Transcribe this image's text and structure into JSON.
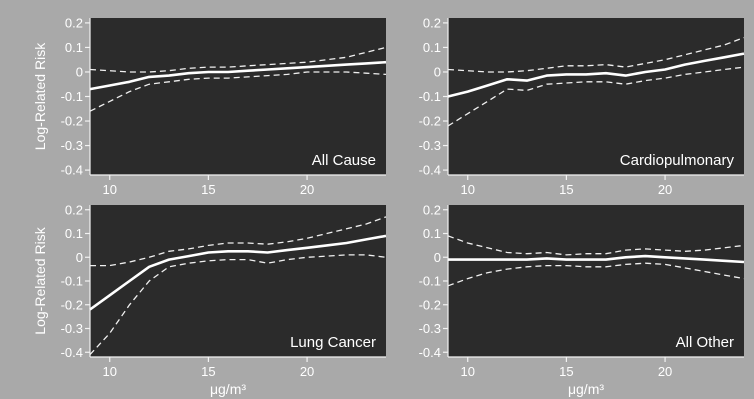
{
  "chart_data": [
    {
      "type": "line",
      "title": "All Cause",
      "ylabel": "Log-Related Risk",
      "xlabel": "",
      "xlim": [
        9,
        24
      ],
      "ylim": [
        -0.42,
        0.22
      ],
      "xticks": [
        10,
        15,
        20
      ],
      "yticks": [
        0.2,
        0.1,
        0,
        -0.1,
        -0.2,
        -0.3,
        -0.4
      ],
      "ytick_labels": [
        "0.2",
        "0.1",
        "0",
        "-0.1",
        "-0.2",
        "-0.3",
        "-0.4"
      ],
      "grid": false,
      "series": [
        {
          "style": "solid",
          "x": [
            9,
            10,
            11,
            12,
            13,
            14,
            15,
            16,
            17,
            18,
            19,
            20,
            21,
            22,
            23,
            24
          ],
          "y": [
            -0.07,
            -0.055,
            -0.04,
            -0.02,
            -0.015,
            -0.005,
            0.0,
            0.0,
            0.005,
            0.01,
            0.015,
            0.02,
            0.025,
            0.03,
            0.035,
            0.04
          ]
        },
        {
          "style": "dashed",
          "x": [
            9,
            10,
            11,
            12,
            13,
            14,
            15,
            16,
            17,
            18,
            19,
            20,
            21,
            22,
            23,
            24
          ],
          "y": [
            0.01,
            0.005,
            0.0,
            0.0,
            0.005,
            0.015,
            0.02,
            0.02,
            0.025,
            0.03,
            0.035,
            0.04,
            0.05,
            0.06,
            0.08,
            0.1
          ]
        },
        {
          "style": "dashed",
          "x": [
            9,
            10,
            11,
            12,
            13,
            14,
            15,
            16,
            17,
            18,
            19,
            20,
            21,
            22,
            23,
            24
          ],
          "y": [
            -0.16,
            -0.12,
            -0.08,
            -0.05,
            -0.04,
            -0.03,
            -0.025,
            -0.025,
            -0.02,
            -0.015,
            -0.01,
            0.0,
            0.0,
            0.0,
            -0.005,
            -0.01
          ]
        }
      ]
    },
    {
      "type": "line",
      "title": "Cardiopulmonary",
      "ylabel": "",
      "xlabel": "",
      "xlim": [
        9,
        24
      ],
      "ylim": [
        -0.42,
        0.22
      ],
      "xticks": [
        10,
        15,
        20
      ],
      "yticks": [
        0.2,
        0.1,
        0,
        -0.1,
        -0.2,
        -0.3,
        -0.4
      ],
      "ytick_labels": [
        "0.2",
        "0.1",
        "0",
        "-0.1",
        "-0.2",
        "-0.3",
        "-0.4"
      ],
      "grid": false,
      "series": [
        {
          "style": "solid",
          "x": [
            9,
            10,
            11,
            12,
            13,
            14,
            15,
            16,
            17,
            18,
            19,
            20,
            21,
            22,
            23,
            24
          ],
          "y": [
            -0.1,
            -0.08,
            -0.055,
            -0.03,
            -0.035,
            -0.015,
            -0.01,
            -0.01,
            -0.005,
            -0.015,
            0.0,
            0.01,
            0.03,
            0.045,
            0.06,
            0.075
          ]
        },
        {
          "style": "dashed",
          "x": [
            9,
            10,
            11,
            12,
            13,
            14,
            15,
            16,
            17,
            18,
            19,
            20,
            21,
            22,
            23,
            24
          ],
          "y": [
            0.01,
            0.005,
            0.0,
            0.0,
            0.005,
            0.015,
            0.025,
            0.025,
            0.03,
            0.02,
            0.035,
            0.05,
            0.07,
            0.09,
            0.11,
            0.14
          ]
        },
        {
          "style": "dashed",
          "x": [
            9,
            10,
            11,
            12,
            13,
            14,
            15,
            16,
            17,
            18,
            19,
            20,
            21,
            22,
            23,
            24
          ],
          "y": [
            -0.22,
            -0.17,
            -0.12,
            -0.07,
            -0.075,
            -0.05,
            -0.045,
            -0.04,
            -0.04,
            -0.05,
            -0.035,
            -0.025,
            -0.01,
            0.0,
            0.01,
            0.02
          ]
        }
      ]
    },
    {
      "type": "line",
      "title": "Lung Cancer",
      "ylabel": "Log-Related Risk",
      "xlabel": "μg/m³",
      "xlim": [
        9,
        24
      ],
      "ylim": [
        -0.42,
        0.22
      ],
      "xticks": [
        10,
        15,
        20
      ],
      "yticks": [
        0.2,
        0.1,
        0,
        -0.1,
        -0.2,
        -0.3,
        -0.4
      ],
      "ytick_labels": [
        "0.2",
        "0.1",
        "0",
        "-0.1",
        "-0.2",
        "-0.3",
        "-0.4"
      ],
      "grid": false,
      "series": [
        {
          "style": "solid",
          "x": [
            9,
            10,
            11,
            12,
            13,
            14,
            15,
            16,
            17,
            18,
            19,
            20,
            21,
            22,
            23,
            24
          ],
          "y": [
            -0.22,
            -0.16,
            -0.1,
            -0.04,
            -0.01,
            0.005,
            0.02,
            0.025,
            0.025,
            0.02,
            0.03,
            0.04,
            0.05,
            0.06,
            0.075,
            0.09
          ]
        },
        {
          "style": "dashed",
          "x": [
            9,
            10,
            11,
            12,
            13,
            14,
            15,
            16,
            17,
            18,
            19,
            20,
            21,
            22,
            23,
            24
          ],
          "y": [
            -0.035,
            -0.035,
            -0.02,
            0.0,
            0.025,
            0.035,
            0.05,
            0.06,
            0.06,
            0.055,
            0.065,
            0.08,
            0.1,
            0.12,
            0.14,
            0.17
          ]
        },
        {
          "style": "dashed",
          "x": [
            9,
            10,
            11,
            12,
            13,
            14,
            15,
            16,
            17,
            18,
            19,
            20,
            21,
            22,
            23,
            24
          ],
          "y": [
            -0.41,
            -0.32,
            -0.2,
            -0.1,
            -0.04,
            -0.025,
            -0.015,
            -0.01,
            -0.01,
            -0.025,
            -0.01,
            0.0,
            0.005,
            0.01,
            0.01,
            0.0
          ]
        }
      ]
    },
    {
      "type": "line",
      "title": "All Other",
      "ylabel": "",
      "xlabel": "μg/m³",
      "xlim": [
        9,
        24
      ],
      "ylim": [
        -0.42,
        0.22
      ],
      "xticks": [
        10,
        15,
        20
      ],
      "yticks": [
        0.2,
        0.1,
        0,
        -0.1,
        -0.2,
        -0.3,
        -0.4
      ],
      "ytick_labels": [
        "0.2",
        "0.1",
        "0",
        "-0.1",
        "-0.2",
        "-0.3",
        "-0.4"
      ],
      "grid": false,
      "series": [
        {
          "style": "solid",
          "x": [
            9,
            10,
            11,
            12,
            13,
            14,
            15,
            16,
            17,
            18,
            19,
            20,
            21,
            22,
            23,
            24
          ],
          "y": [
            -0.01,
            -0.01,
            -0.01,
            -0.01,
            -0.01,
            -0.005,
            -0.01,
            -0.01,
            -0.01,
            0.0,
            0.005,
            0.0,
            -0.005,
            -0.01,
            -0.015,
            -0.02
          ]
        },
        {
          "style": "dashed",
          "x": [
            9,
            10,
            11,
            12,
            13,
            14,
            15,
            16,
            17,
            18,
            19,
            20,
            21,
            22,
            23,
            24
          ],
          "y": [
            0.09,
            0.06,
            0.04,
            0.02,
            0.015,
            0.02,
            0.01,
            0.015,
            0.015,
            0.03,
            0.035,
            0.03,
            0.025,
            0.03,
            0.04,
            0.05
          ]
        },
        {
          "style": "dashed",
          "x": [
            9,
            10,
            11,
            12,
            13,
            14,
            15,
            16,
            17,
            18,
            19,
            20,
            21,
            22,
            23,
            24
          ],
          "y": [
            -0.12,
            -0.09,
            -0.065,
            -0.05,
            -0.04,
            -0.035,
            -0.035,
            -0.04,
            -0.04,
            -0.03,
            -0.025,
            -0.03,
            -0.045,
            -0.06,
            -0.075,
            -0.09
          ]
        }
      ]
    }
  ]
}
